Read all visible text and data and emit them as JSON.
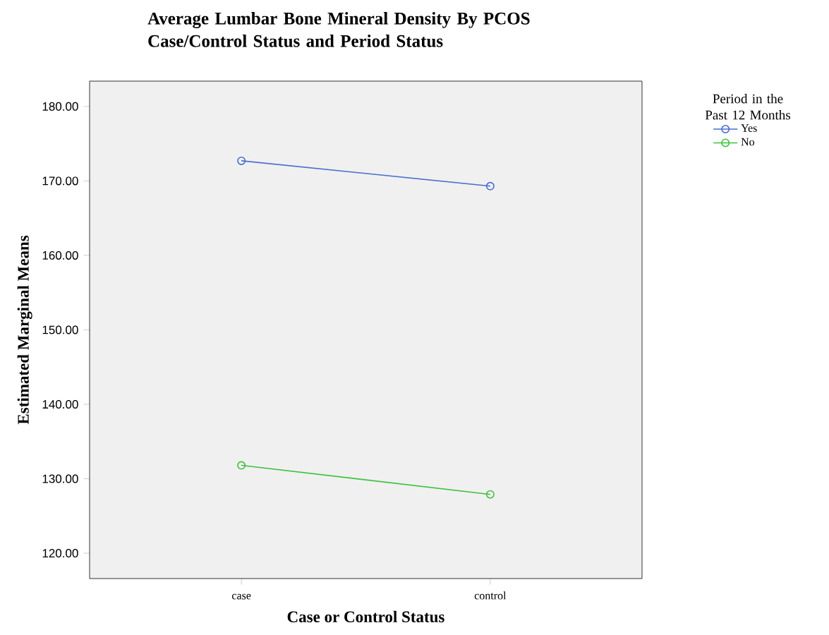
{
  "chart_data": {
    "type": "line",
    "title": "Average Lumbar Bone Mineral Density By PCOS Case/Control Status and Period Status",
    "xlabel": "Case or Control Status",
    "ylabel": "Estimated Marginal Means",
    "legend_title": "Period in the Past 12 Months",
    "categories": [
      "case",
      "control"
    ],
    "series": [
      {
        "name": "Yes",
        "color": "#4a6ccf",
        "values": [
          172.7,
          169.3
        ]
      },
      {
        "name": "No",
        "color": "#3ec13e",
        "values": [
          131.8,
          127.9
        ]
      }
    ],
    "ylim": [
      116.6,
      183.4
    ],
    "yticks": [
      {
        "value": 120,
        "label": "120.00"
      },
      {
        "value": 130,
        "label": "130.00"
      },
      {
        "value": 140,
        "label": "140.00"
      },
      {
        "value": 150,
        "label": "150.00"
      },
      {
        "value": 160,
        "label": "160.00"
      },
      {
        "value": 170,
        "label": "170.00"
      },
      {
        "value": 180,
        "label": "180.00"
      }
    ],
    "marker": "circle",
    "line_style": "solid",
    "grid": false,
    "legend": "right"
  }
}
